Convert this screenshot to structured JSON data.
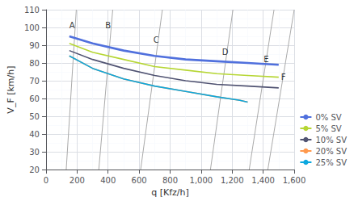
{
  "chart_data": {
    "type": "line",
    "xlabel": "q [Kfz/h]",
    "ylabel": "V_F [km/h]",
    "xlim": [
      0,
      1600
    ],
    "ylim": [
      20,
      110
    ],
    "xticks": [
      0,
      200,
      400,
      600,
      800,
      1000,
      1200,
      1400,
      1600
    ],
    "yticks": [
      20,
      30,
      40,
      50,
      60,
      70,
      80,
      90,
      100,
      110
    ],
    "grid": true,
    "legend": "lower right",
    "series": [
      {
        "name": "0% SV",
        "x": [
          150,
          300,
          500,
          700,
          900,
          1100,
          1300,
          1500
        ],
        "values": [
          95,
          91,
          87,
          84,
          82,
          81,
          80,
          79
        ]
      },
      {
        "name": "5% SV",
        "x": [
          150,
          300,
          500,
          700,
          900,
          1100,
          1300,
          1500
        ],
        "values": [
          91,
          86,
          82,
          78,
          76,
          74,
          73,
          72
        ]
      },
      {
        "name": "10% SV",
        "x": [
          150,
          300,
          500,
          700,
          900,
          1100,
          1300,
          1500
        ],
        "values": [
          87,
          82,
          77,
          73,
          70,
          68,
          67,
          66
        ]
      },
      {
        "name": "20% SV",
        "x": [
          150,
          300,
          500,
          700,
          900,
          1100,
          1250,
          1300
        ],
        "values": [
          84,
          77,
          71,
          67,
          64,
          61,
          59,
          58
        ]
      },
      {
        "name": "25% SV",
        "x": [
          150,
          300,
          500,
          700,
          900,
          1100,
          1250,
          1300
        ],
        "values": [
          84,
          77,
          71,
          67,
          64,
          61,
          59,
          58
        ]
      }
    ],
    "reference_lines": [
      {
        "x": [
          130,
          195
        ],
        "values": [
          20,
          110
        ],
        "color": "#aaaaaa"
      },
      {
        "x": [
          340,
          430
        ],
        "values": [
          20,
          110
        ],
        "color": "#aaaaaa"
      },
      {
        "x": [
          610,
          750
        ],
        "values": [
          20,
          110
        ],
        "color": "#aaaaaa"
      },
      {
        "x": [
          1060,
          1205
        ],
        "values": [
          20,
          110
        ],
        "color": "#aaaaaa"
      },
      {
        "x": [
          1310,
          1470
        ],
        "values": [
          20,
          110
        ],
        "color": "#aaaaaa"
      },
      {
        "x": [
          1430,
          1600
        ],
        "values": [
          20,
          110
        ],
        "color": "#aaaaaa"
      }
    ],
    "annotations": [
      {
        "text": "A",
        "x": 168,
        "y": 101
      },
      {
        "text": "B",
        "x": 400,
        "y": 101
      },
      {
        "text": "C",
        "x": 710,
        "y": 93
      },
      {
        "text": "D",
        "x": 1155,
        "y": 86
      },
      {
        "text": "E",
        "x": 1420,
        "y": 82
      },
      {
        "text": "F",
        "x": 1530,
        "y": 72
      }
    ]
  }
}
